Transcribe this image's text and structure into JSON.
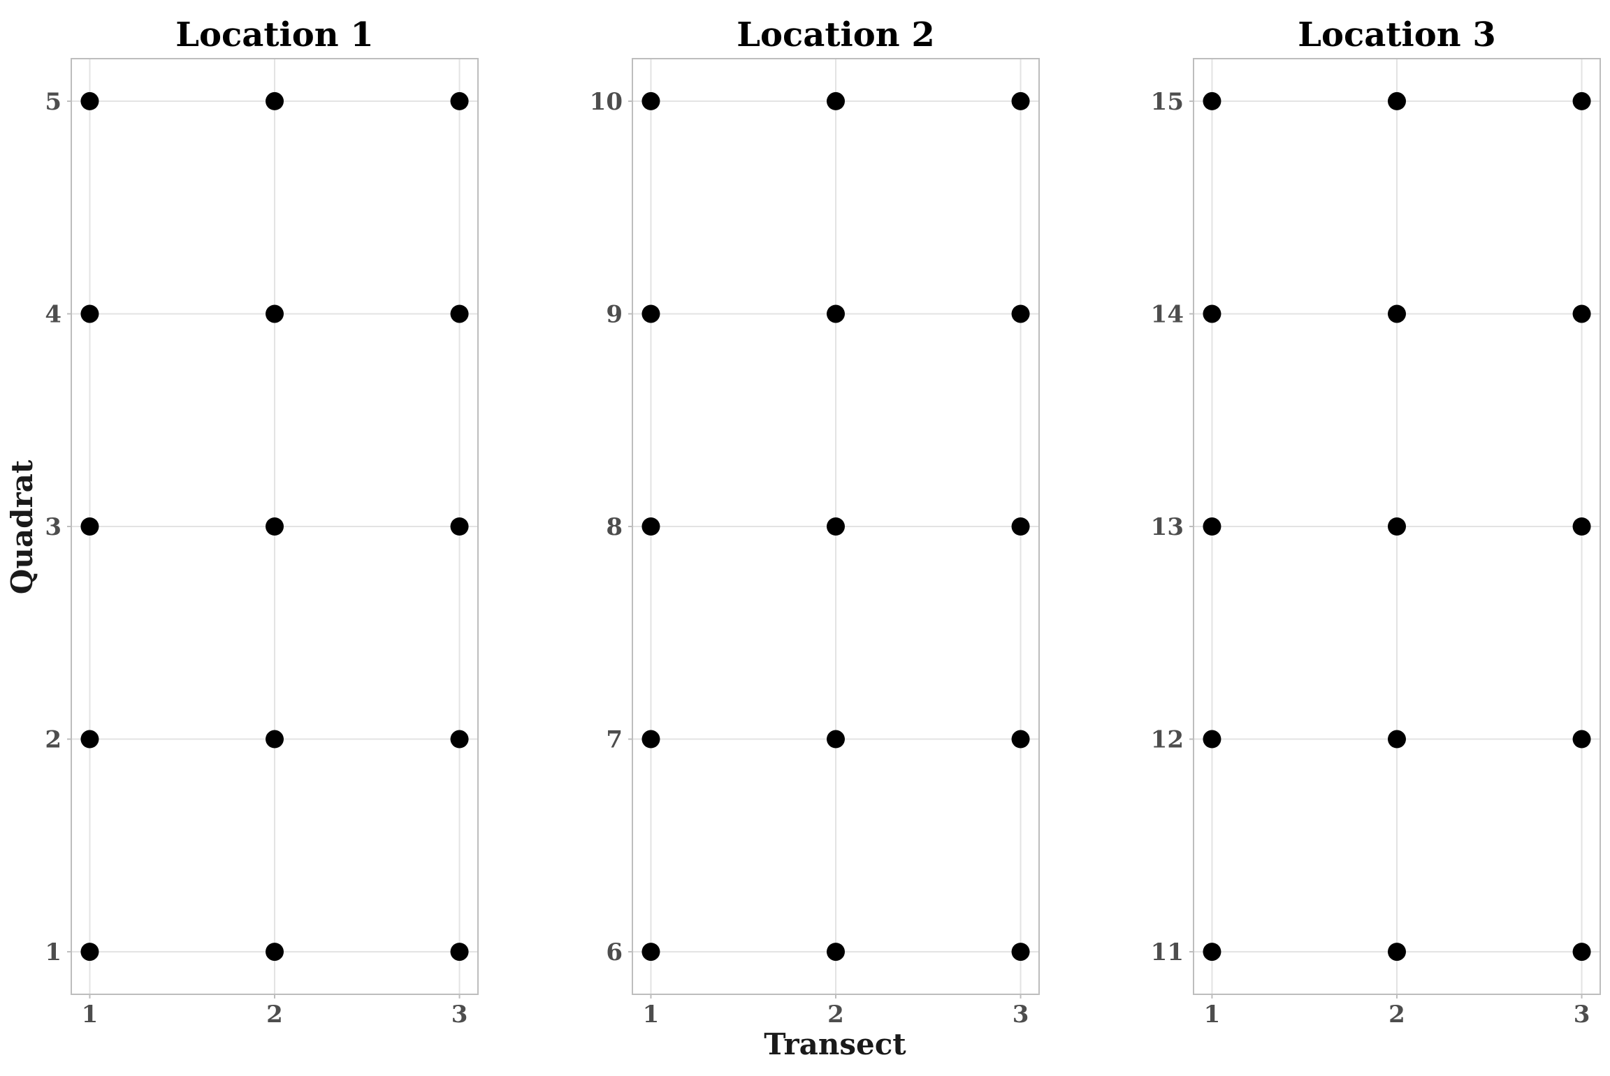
{
  "chart_data": {
    "type": "scatter",
    "xlabel": "Transect",
    "ylabel": "Quadrat",
    "grid": true,
    "marker_color": "#000000",
    "panels": [
      {
        "title": "Location 1",
        "x_ticks": [
          1,
          2,
          3
        ],
        "y_ticks": [
          1,
          2,
          3,
          4,
          5
        ],
        "xlim": [
          0.9,
          3.1
        ],
        "ylim": [
          0.8,
          5.2
        ],
        "points": [
          [
            1,
            1
          ],
          [
            2,
            1
          ],
          [
            3,
            1
          ],
          [
            1,
            2
          ],
          [
            2,
            2
          ],
          [
            3,
            2
          ],
          [
            1,
            3
          ],
          [
            2,
            3
          ],
          [
            3,
            3
          ],
          [
            1,
            4
          ],
          [
            2,
            4
          ],
          [
            3,
            4
          ],
          [
            1,
            5
          ],
          [
            2,
            5
          ],
          [
            3,
            5
          ]
        ]
      },
      {
        "title": "Location 2",
        "x_ticks": [
          1,
          2,
          3
        ],
        "y_ticks": [
          6,
          7,
          8,
          9,
          10
        ],
        "xlim": [
          0.9,
          3.1
        ],
        "ylim": [
          5.8,
          10.2
        ],
        "points": [
          [
            1,
            6
          ],
          [
            2,
            6
          ],
          [
            3,
            6
          ],
          [
            1,
            7
          ],
          [
            2,
            7
          ],
          [
            3,
            7
          ],
          [
            1,
            8
          ],
          [
            2,
            8
          ],
          [
            3,
            8
          ],
          [
            1,
            9
          ],
          [
            2,
            9
          ],
          [
            3,
            9
          ],
          [
            1,
            10
          ],
          [
            2,
            10
          ],
          [
            3,
            10
          ]
        ]
      },
      {
        "title": "Location 3",
        "x_ticks": [
          1,
          2,
          3
        ],
        "y_ticks": [
          11,
          12,
          13,
          14,
          15
        ],
        "xlim": [
          0.9,
          3.1
        ],
        "ylim": [
          10.8,
          15.2
        ],
        "points": [
          [
            1,
            11
          ],
          [
            2,
            11
          ],
          [
            3,
            11
          ],
          [
            1,
            12
          ],
          [
            2,
            12
          ],
          [
            3,
            12
          ],
          [
            1,
            13
          ],
          [
            2,
            13
          ],
          [
            3,
            13
          ],
          [
            1,
            14
          ],
          [
            2,
            14
          ],
          [
            3,
            14
          ],
          [
            1,
            15
          ],
          [
            2,
            15
          ],
          [
            3,
            15
          ]
        ]
      }
    ]
  }
}
